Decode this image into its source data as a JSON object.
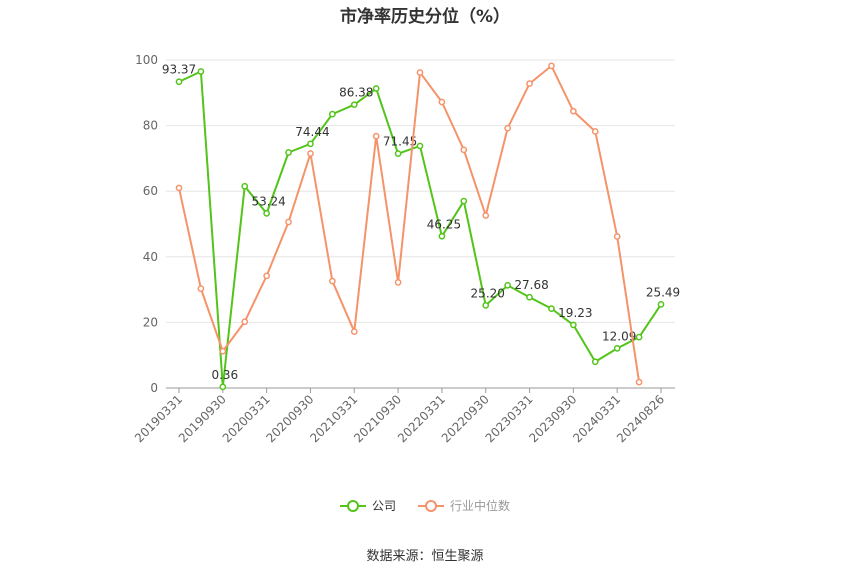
{
  "title": "市净率历史分位（%）",
  "source": "数据来源：恒生聚源",
  "chart_data": {
    "type": "line",
    "ylim": [
      0,
      100
    ],
    "yticks": [
      0,
      20,
      40,
      60,
      80,
      100
    ],
    "x_tick_labels": [
      "20190331",
      "20190930",
      "20200331",
      "20200930",
      "20210331",
      "20210930",
      "20220331",
      "20220930",
      "20230331",
      "20230930",
      "20240331",
      "20240826"
    ],
    "grid": true,
    "legend_position": "bottom",
    "series": [
      {
        "name": "公司",
        "color": "#52c41a",
        "values": [
          93.37,
          96.5,
          0.36,
          61.5,
          53.24,
          71.8,
          74.44,
          83.5,
          86.38,
          91.3,
          71.45,
          73.8,
          46.25,
          57.0,
          25.2,
          31.3,
          27.68,
          24.2,
          19.23,
          8.0,
          12.09,
          15.5,
          25.49
        ],
        "data_labels": {
          "0": "93.37",
          "2": "0.36",
          "4": "53.24",
          "6": "74.44",
          "8": "86.38",
          "10": "71.45",
          "12": "46.25",
          "14": "25.20",
          "16": "27.68",
          "18": "19.23",
          "20": "12.09",
          "22": "25.49"
        }
      },
      {
        "name": "行业中位数",
        "color": "#f5936a",
        "values": [
          61.0,
          30.3,
          11.2,
          20.2,
          34.2,
          50.6,
          71.5,
          32.6,
          17.2,
          76.8,
          32.2,
          96.2,
          87.2,
          72.6,
          52.6,
          79.2,
          92.8,
          98.2,
          84.4,
          78.2,
          46.2,
          1.8,
          null
        ]
      }
    ]
  }
}
